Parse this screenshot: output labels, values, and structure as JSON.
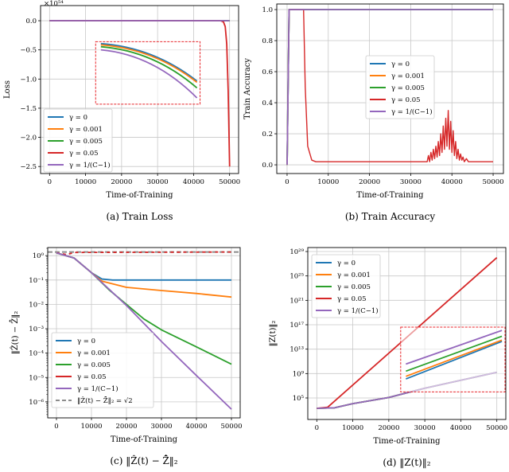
{
  "colors": {
    "gamma_0": "#1f77b4",
    "gamma_0001": "#ff7f0e",
    "gamma_0005": "#2ca02c",
    "gamma_005": "#d62728",
    "gamma_inv": "#9467bd",
    "reference": "#8c8c8c",
    "inset_box": "#e8262b"
  },
  "chart_data": [
    {
      "type": "line",
      "caption": "(a) Train Loss",
      "xlabel": "Time-of-Training",
      "ylabel": "Loss",
      "y_offset_label": "×10⁵⁴",
      "xlim": [
        -2500,
        52500
      ],
      "ylim": [
        -2.62,
        0.26
      ],
      "yscale": "linear",
      "grid": true,
      "legend": "lower-left",
      "x_ticks": [
        0,
        10000,
        20000,
        30000,
        40000,
        50000
      ],
      "x_tick_labels": [
        "0",
        "10000",
        "20000",
        "30000",
        "40000",
        "50000"
      ],
      "y_ticks": [
        0,
        -0.5,
        -1,
        -1.5,
        -2,
        -2.5
      ],
      "y_tick_labels": [
        "0.0",
        "−0.5",
        "−1.0",
        "−1.5",
        "−2.0",
        "−2.5"
      ],
      "inset": {
        "xlim": [
          12800,
          41800
        ],
        "ylim": [
          -1.43,
          -0.36
        ]
      },
      "series": [
        {
          "name": "γ = 0",
          "color": "#1f77b4",
          "points": [
            [
              0,
              0
            ],
            [
              50000,
              0
            ]
          ]
        },
        {
          "name": "γ = 0.001",
          "color": "#ff7f0e",
          "points": [
            [
              0,
              0
            ],
            [
              50000,
              0
            ]
          ]
        },
        {
          "name": "γ = 0.005",
          "color": "#2ca02c",
          "points": [
            [
              0,
              0
            ],
            [
              50000,
              0
            ]
          ]
        },
        {
          "name": "γ = 0.05",
          "color": "#d62728",
          "points": [
            [
              0,
              0
            ],
            [
              47500,
              0
            ],
            [
              48300,
              -0.02
            ],
            [
              48800,
              -0.1
            ],
            [
              49200,
              -0.4
            ],
            [
              49600,
              -1.2
            ],
            [
              50000,
              -2.5
            ]
          ]
        },
        {
          "name": "γ = 1/(C−1)",
          "color": "#9467bd",
          "points": [
            [
              0,
              0
            ],
            [
              48000,
              0
            ],
            [
              50000,
              0
            ]
          ]
        }
      ]
    },
    {
      "type": "line",
      "caption": "(b) Train Accuracy",
      "xlabel": "Time-of-Training",
      "ylabel": "Train Accuracy",
      "xlim": [
        -2500,
        52500
      ],
      "ylim": [
        -0.056,
        1.036
      ],
      "yscale": "linear",
      "grid": true,
      "legend": "center",
      "x_ticks": [
        0,
        10000,
        20000,
        30000,
        40000,
        50000
      ],
      "x_tick_labels": [
        "0",
        "10000",
        "20000",
        "30000",
        "40000",
        "50000"
      ],
      "y_ticks": [
        0,
        0.2,
        0.4,
        0.6,
        0.8,
        1.0
      ],
      "y_tick_labels": [
        "0.0",
        "0.2",
        "0.4",
        "0.6",
        "0.8",
        "1.0"
      ],
      "series": [
        {
          "name": "γ = 0",
          "color": "#1f77b4",
          "points": [
            [
              0,
              0
            ],
            [
              500,
              1
            ],
            [
              50000,
              1
            ]
          ]
        },
        {
          "name": "γ = 0.001",
          "color": "#ff7f0e",
          "points": [
            [
              0,
              0
            ],
            [
              500,
              1
            ],
            [
              50000,
              1
            ]
          ]
        },
        {
          "name": "γ = 0.005",
          "color": "#2ca02c",
          "points": [
            [
              0,
              0
            ],
            [
              500,
              1
            ],
            [
              50000,
              1
            ]
          ]
        },
        {
          "name": "γ = 0.05",
          "color": "#d62728",
          "points": [
            [
              0,
              0
            ],
            [
              500,
              1
            ],
            [
              4000,
              1
            ],
            [
              4400,
              0.5
            ],
            [
              5000,
              0.12
            ],
            [
              6000,
              0.03
            ],
            [
              7000,
              0.02
            ],
            [
              34000,
              0.02
            ],
            [
              34300,
              0.06
            ],
            [
              34600,
              0.02
            ],
            [
              34900,
              0.08
            ],
            [
              35200,
              0.03
            ],
            [
              35500,
              0.1
            ],
            [
              35800,
              0.04
            ],
            [
              36100,
              0.12
            ],
            [
              36400,
              0.05
            ],
            [
              36700,
              0.15
            ],
            [
              37000,
              0.06
            ],
            [
              37300,
              0.2
            ],
            [
              37600,
              0.08
            ],
            [
              37900,
              0.25
            ],
            [
              38200,
              0.1
            ],
            [
              38500,
              0.3
            ],
            [
              38800,
              0.12
            ],
            [
              39100,
              0.35
            ],
            [
              39400,
              0.1
            ],
            [
              39700,
              0.28
            ],
            [
              40000,
              0.08
            ],
            [
              40300,
              0.22
            ],
            [
              40600,
              0.06
            ],
            [
              40900,
              0.15
            ],
            [
              41200,
              0.04
            ],
            [
              41500,
              0.1
            ],
            [
              41800,
              0.03
            ],
            [
              42100,
              0.07
            ],
            [
              42400,
              0.03
            ],
            [
              42700,
              0.05
            ],
            [
              43000,
              0.02
            ],
            [
              43500,
              0.04
            ],
            [
              44000,
              0.02
            ],
            [
              45000,
              0.02
            ],
            [
              50000,
              0.02
            ]
          ]
        },
        {
          "name": "γ = 1/(C−1)",
          "color": "#9467bd",
          "points": [
            [
              0,
              0
            ],
            [
              500,
              1
            ],
            [
              50000,
              1
            ]
          ]
        }
      ]
    },
    {
      "type": "line",
      "caption": "(c) ‖Ẑ(t) − Z̄̂‖₂",
      "xlabel": "Time-of-Training",
      "ylabel": "‖Ẑ(t) − Z̄̂‖₂",
      "xlim": [
        -2500,
        52500
      ],
      "ylim": [
        2.2e-07,
        2.15
      ],
      "yscale": "log",
      "grid": true,
      "legend": "lower-left",
      "x_ticks": [
        0,
        10000,
        20000,
        30000,
        40000,
        50000
      ],
      "x_tick_labels": [
        "0",
        "10000",
        "20000",
        "30000",
        "40000",
        "50000"
      ],
      "y_ticks": [
        1,
        0.1,
        0.01,
        0.001,
        0.0001,
        1e-05,
        1e-06
      ],
      "y_tick_labels": [
        "10⁰",
        "10⁻¹",
        "10⁻²",
        "10⁻³",
        "10⁻⁴",
        "10⁻⁵",
        "10⁻⁶"
      ],
      "reference": {
        "name": "‖Ẑ(t) − Z̄̂‖₂ = √2",
        "value": 1.414
      },
      "series": [
        {
          "name": "γ = 0",
          "color": "#1f77b4",
          "points": [
            [
              0,
              1.3
            ],
            [
              5000,
              0.8
            ],
            [
              10000,
              0.2
            ],
            [
              13000,
              0.11
            ],
            [
              16000,
              0.1
            ],
            [
              50000,
              0.1
            ]
          ]
        },
        {
          "name": "γ = 0.001",
          "color": "#ff7f0e",
          "points": [
            [
              0,
              1.3
            ],
            [
              5000,
              0.8
            ],
            [
              10000,
              0.2
            ],
            [
              13000,
              0.09
            ],
            [
              20000,
              0.05
            ],
            [
              30000,
              0.037
            ],
            [
              40000,
              0.028
            ],
            [
              50000,
              0.02
            ]
          ]
        },
        {
          "name": "γ = 0.005",
          "color": "#2ca02c",
          "points": [
            [
              0,
              1.3
            ],
            [
              5000,
              0.8
            ],
            [
              10000,
              0.2
            ],
            [
              15000,
              0.04
            ],
            [
              20000,
              0.01
            ],
            [
              25000,
              0.0025
            ],
            [
              30000,
              0.0009
            ],
            [
              40000,
              0.00018
            ],
            [
              50000,
              3.5e-05
            ]
          ]
        },
        {
          "name": "γ = 0.05",
          "color": "#d62728",
          "dashed": true,
          "points": [
            [
              0,
              1.3
            ],
            [
              3000,
              1.1
            ],
            [
              5000,
              1.35
            ],
            [
              50000,
              1.414
            ]
          ]
        },
        {
          "name": "γ = 1/(C−1)",
          "color": "#9467bd",
          "points": [
            [
              0,
              1.3
            ],
            [
              5000,
              0.8
            ],
            [
              10000,
              0.2
            ],
            [
              20000,
              0.009
            ],
            [
              30000,
              0.0003
            ],
            [
              40000,
              1.2e-05
            ],
            [
              50000,
              5e-07
            ]
          ]
        }
      ]
    },
    {
      "type": "line",
      "caption": "(d) ‖Z(t)‖₂",
      "xlabel": "Time-of-Training",
      "ylabel": "‖Z(t)‖₂",
      "xlim": [
        -2500,
        52500
      ],
      "ylim": [
        30,
        4.5e+29
      ],
      "yscale": "log",
      "grid": true,
      "legend": "upper-left",
      "x_ticks": [
        0,
        10000,
        20000,
        30000,
        40000,
        50000
      ],
      "x_tick_labels": [
        "0",
        "10000",
        "20000",
        "30000",
        "40000",
        "50000"
      ],
      "y_ticks": [
        100000.0,
        1000000000.0,
        10000000000000.0,
        1e+17,
        1e+21,
        1e+25,
        1e+29
      ],
      "y_tick_labels": [
        "10⁵",
        "10⁹",
        "10¹³",
        "10¹⁷",
        "10²¹",
        "10²⁵",
        "10²⁹"
      ],
      "inset": {
        "xlim": [
          23300,
          52500
        ],
        "ylim": [
          1000000.0,
          4e+16
        ]
      },
      "series": [
        {
          "name": "γ = 0",
          "color": "#1f77b4",
          "points": [
            [
              0,
              2000
            ],
            [
              5000,
              2500
            ],
            [
              10000,
              12000
            ],
            [
              20000,
              120000
            ],
            [
              30000,
              4000000.0
            ],
            [
              50000,
              1600000000.0
            ]
          ]
        },
        {
          "name": "γ = 0.001",
          "color": "#ff7f0e",
          "points": [
            [
              0,
              2000
            ],
            [
              5000,
              2500
            ],
            [
              10000,
              12000
            ],
            [
              20000,
              120000
            ],
            [
              30000,
              4000000.0
            ],
            [
              50000,
              1600000000.0
            ]
          ]
        },
        {
          "name": "γ = 0.005",
          "color": "#2ca02c",
          "points": [
            [
              0,
              2000
            ],
            [
              5000,
              2500
            ],
            [
              10000,
              12000
            ],
            [
              20000,
              120000
            ],
            [
              30000,
              4000000.0
            ],
            [
              50000,
              1600000000.0
            ]
          ]
        },
        {
          "name": "γ = 0.05",
          "color": "#d62728",
          "points": [
            [
              0,
              2000
            ],
            [
              3000,
              3000
            ],
            [
              50000,
              1e+28
            ]
          ]
        },
        {
          "name": "γ = 1/(C−1)",
          "color": "#9467bd",
          "points": [
            [
              0,
              2000
            ],
            [
              5000,
              2500
            ],
            [
              10000,
              12000
            ],
            [
              20000,
              120000
            ],
            [
              30000,
              4000000.0
            ],
            [
              50000,
              1600000000.0
            ]
          ]
        }
      ]
    }
  ]
}
